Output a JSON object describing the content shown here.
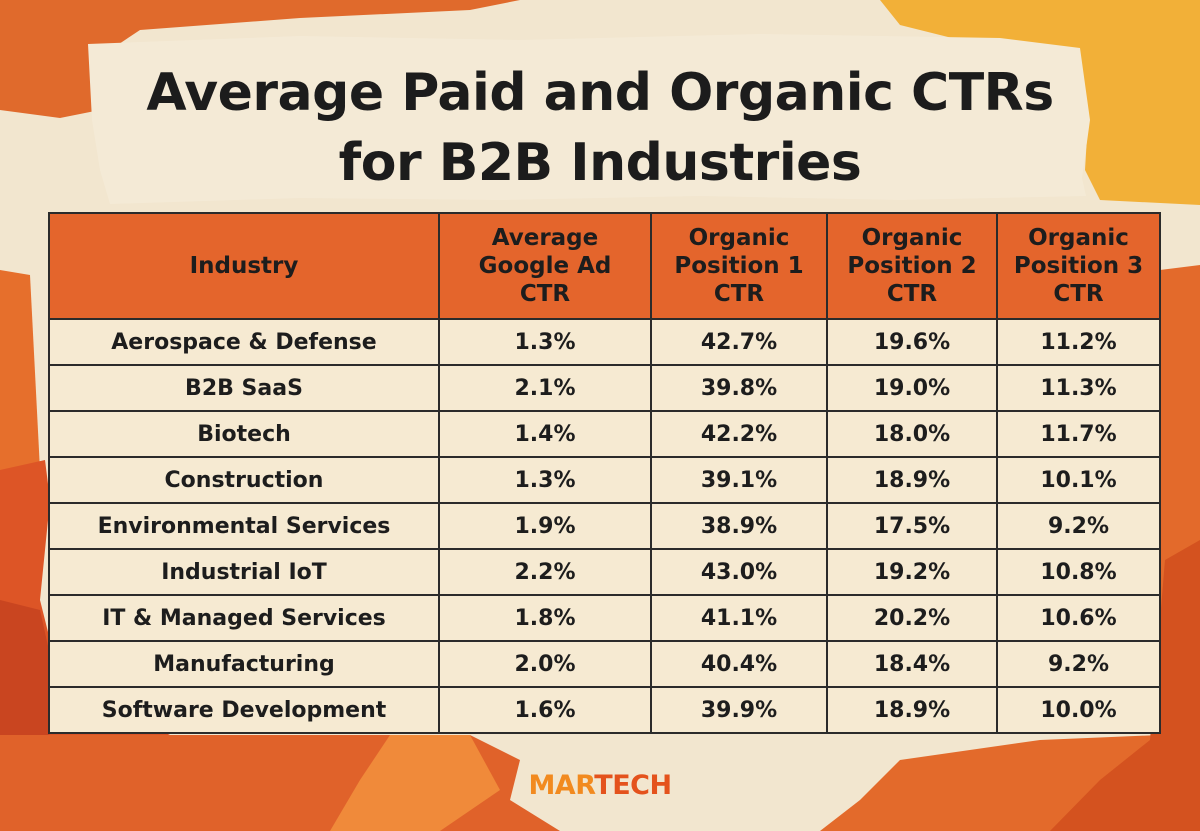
{
  "title_lines": [
    "Average Paid and Organic CTRs",
    "for B2B Industries"
  ],
  "colors": {
    "background": "#f2e6cf",
    "header_fill": "#e4652c",
    "accent_orange": "#e4521c",
    "accent_yellow": "#f2b038",
    "text": "#1d1d1d"
  },
  "table": {
    "headers": [
      [
        "Industry"
      ],
      [
        "Average",
        "Google Ad",
        "CTR"
      ],
      [
        "Organic",
        "Position 1",
        "CTR"
      ],
      [
        "Organic",
        "Position 2",
        "CTR"
      ],
      [
        "Organic",
        "Position 3",
        "CTR"
      ]
    ],
    "rows": [
      [
        "Aerospace & Defense",
        "1.3%",
        "42.7%",
        "19.6%",
        "11.2%"
      ],
      [
        "B2B SaaS",
        "2.1%",
        "39.8%",
        "19.0%",
        "11.3%"
      ],
      [
        "Biotech",
        "1.4%",
        "42.2%",
        "18.0%",
        "11.7%"
      ],
      [
        "Construction",
        "1.3%",
        "39.1%",
        "18.9%",
        "10.1%"
      ],
      [
        "Environmental Services",
        "1.9%",
        "38.9%",
        "17.5%",
        "9.2%"
      ],
      [
        "Industrial IoT",
        "2.2%",
        "43.0%",
        "19.2%",
        "10.8%"
      ],
      [
        "IT & Managed Services",
        "1.8%",
        "41.1%",
        "20.2%",
        "10.6%"
      ],
      [
        "Manufacturing",
        "2.0%",
        "40.4%",
        "18.4%",
        "9.2%"
      ],
      [
        "Software Development",
        "1.6%",
        "39.9%",
        "18.9%",
        "10.0%"
      ]
    ]
  },
  "logo": {
    "part1": "MAR",
    "part2": "TECH"
  }
}
